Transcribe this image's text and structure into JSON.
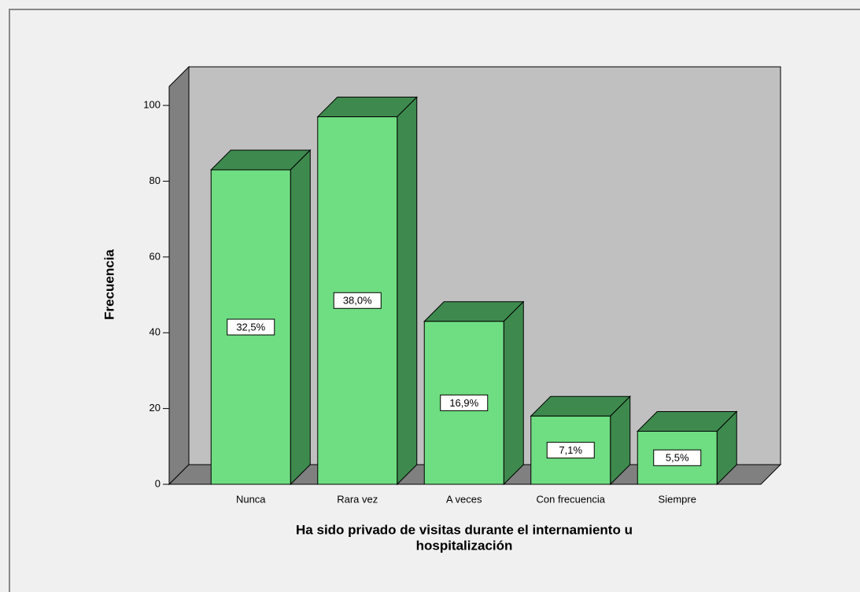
{
  "chart_data": {
    "type": "bar3d",
    "y_label": "Frecuencia",
    "x_label_lines": [
      "Ha sido privado de visitas durante el internamiento u",
      "hospitalización"
    ],
    "categories": [
      "Nunca",
      "Rara vez",
      "A veces",
      "Con frecuencia",
      "Siempre"
    ],
    "values": [
      83,
      97,
      43,
      18,
      14
    ],
    "percentages": [
      32.5,
      38.0,
      16.9,
      7.1,
      5.5
    ],
    "percentage_labels": [
      "32,5%",
      "38,0%",
      "16,9%",
      "7,1%",
      "5,5%"
    ],
    "color": "#6fdd82",
    "side_color": "#3e8a4e",
    "ylim": [
      0,
      105
    ],
    "yticks": [
      0,
      20,
      40,
      60,
      80,
      100
    ]
  }
}
